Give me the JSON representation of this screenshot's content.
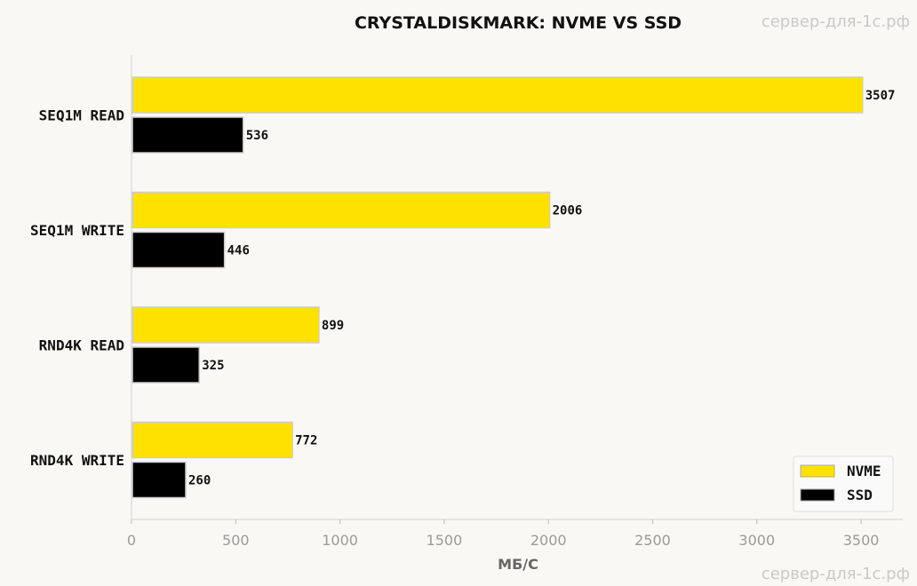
{
  "chart_data": {
    "type": "bar",
    "orientation": "horizontal",
    "title": "CRYSTALDISKMARK: NVME VS SSD",
    "xlabel": "МБ/С",
    "ylabel": "",
    "categories": [
      "SEQ1M READ",
      "SEQ1M WRITE",
      "RND4K READ",
      "RND4K WRITE"
    ],
    "series": [
      {
        "name": "NVME",
        "values": [
          3507,
          2006,
          899,
          772
        ],
        "color": "#ffe100"
      },
      {
        "name": "SSD",
        "values": [
          536,
          446,
          325,
          260
        ],
        "color": "#000000"
      }
    ],
    "xlim": [
      0,
      3700
    ],
    "xticks": [
      0,
      500,
      1000,
      1500,
      2000,
      2500,
      3000,
      3500
    ],
    "xtick_labels": [
      "0",
      "500",
      "1000",
      "1500",
      "2000",
      "2500",
      "3000",
      "3500"
    ],
    "value_labels": true,
    "grid": false,
    "legend_position": "bottom-right"
  },
  "watermark": {
    "top": "сервер-для-1с.рф",
    "bottom": "сервер-для-1с.рф"
  }
}
